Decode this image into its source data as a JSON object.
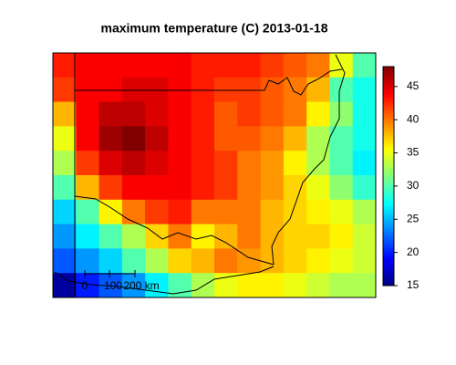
{
  "title": "maximum temperature (C) 2013-01-18",
  "map": {
    "z": [
      [
        43,
        44,
        44,
        44,
        44,
        44,
        43,
        43,
        43,
        42,
        41,
        40,
        35,
        30
      ],
      [
        42,
        44,
        44,
        45,
        45,
        44,
        43,
        42,
        42,
        41,
        40,
        38,
        30,
        28
      ],
      [
        38,
        44,
        46,
        46,
        45,
        44,
        43,
        41,
        42,
        41,
        40,
        36,
        32,
        28
      ],
      [
        35,
        44,
        47,
        48,
        46,
        44,
        43,
        41,
        41,
        40,
        38,
        33,
        30,
        28
      ],
      [
        33,
        42,
        45,
        46,
        45,
        44,
        43,
        42,
        40,
        39,
        36,
        33,
        30,
        27
      ],
      [
        30,
        38,
        42,
        44,
        44,
        44,
        43,
        42,
        40,
        39,
        37,
        35,
        32,
        29
      ],
      [
        26,
        30,
        36,
        40,
        42,
        43,
        40,
        40,
        40,
        38,
        37,
        36,
        35,
        33
      ],
      [
        24,
        27,
        30,
        33,
        37,
        40,
        36,
        38,
        40,
        38,
        37,
        37,
        36,
        34
      ],
      [
        22,
        24,
        26,
        30,
        33,
        37,
        38,
        40,
        39,
        38,
        37,
        36,
        35,
        34
      ],
      [
        16,
        20,
        22,
        24,
        27,
        30,
        33,
        35,
        36,
        36,
        35,
        34,
        33,
        33
      ]
    ]
  },
  "colorbar": {
    "lim": [
      15,
      48
    ],
    "ticks": [
      15,
      20,
      25,
      30,
      35,
      40,
      45
    ]
  },
  "scale_bar": {
    "labels": [
      "0",
      "100",
      "200 km"
    ]
  }
}
